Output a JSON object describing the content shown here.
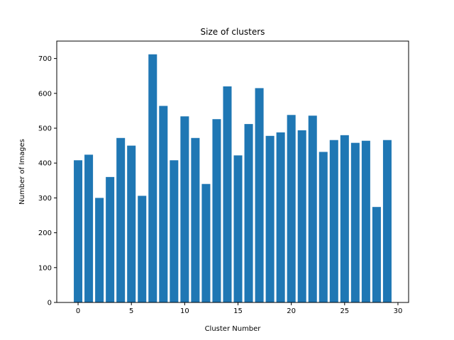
{
  "chart_data": {
    "type": "bar",
    "title": "Size of clusters",
    "xlabel": "Cluster Number",
    "ylabel": "Number of Images",
    "x": [
      0,
      1,
      2,
      3,
      4,
      5,
      6,
      7,
      8,
      9,
      10,
      11,
      12,
      13,
      14,
      15,
      16,
      17,
      18,
      19,
      20,
      21,
      22,
      23,
      24,
      25,
      26,
      27,
      28,
      29
    ],
    "values": [
      408,
      424,
      300,
      360,
      472,
      450,
      306,
      712,
      564,
      408,
      534,
      472,
      340,
      526,
      620,
      422,
      512,
      615,
      478,
      488,
      538,
      494,
      536,
      432,
      466,
      480,
      458,
      464,
      274,
      466
    ],
    "xlim": [
      -2,
      31
    ],
    "ylim": [
      0,
      750
    ],
    "xticks": [
      0,
      5,
      10,
      15,
      20,
      25,
      30
    ],
    "yticks": [
      0,
      100,
      200,
      300,
      400,
      500,
      600,
      700
    ],
    "bar_color": "#1f77b4",
    "grid": false,
    "legend": "none"
  }
}
